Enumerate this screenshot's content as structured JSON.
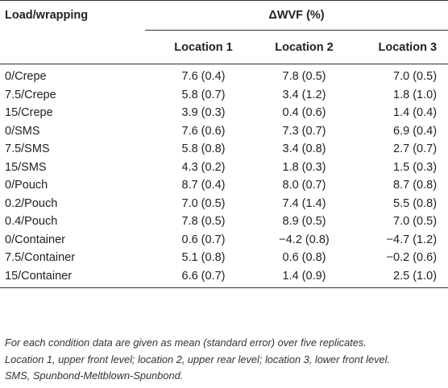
{
  "table": {
    "header": {
      "row_label": "Load/wrapping",
      "group_label": "ΔWVF (%)",
      "columns": [
        "Location 1",
        "Location 2",
        "Location 3"
      ]
    },
    "rows": [
      {
        "label": "0/Crepe",
        "values": [
          "7.6 (0.4)",
          "7.8 (0.5)",
          "7.0 (0.5)"
        ]
      },
      {
        "label": "7.5/Crepe",
        "values": [
          "5.8 (0.7)",
          "3.4 (1.2)",
          "1.8 (1.0)"
        ]
      },
      {
        "label": "15/Crepe",
        "values": [
          "3.9 (0.3)",
          "0.4 (0.6)",
          "1.4 (0.4)"
        ]
      },
      {
        "label": "0/SMS",
        "values": [
          "7.6 (0.6)",
          "7.3 (0.7)",
          "6.9 (0.4)"
        ]
      },
      {
        "label": "7.5/SMS",
        "values": [
          "5.8 (0.8)",
          "3.4 (0.8)",
          "2.7 (0.7)"
        ]
      },
      {
        "label": "15/SMS",
        "values": [
          "4.3 (0.2)",
          "1.8 (0.3)",
          "1.5 (0.3)"
        ]
      },
      {
        "label": "0/Pouch",
        "values": [
          "8.7 (0.4)",
          "8.0 (0.7)",
          "8.7 (0.8)"
        ]
      },
      {
        "label": "0.2/Pouch",
        "values": [
          "7.0 (0.5)",
          "7.4 (1.4)",
          "5.5 (0.8)"
        ]
      },
      {
        "label": "0.4/Pouch",
        "values": [
          "7.8 (0.5)",
          "8.9 (0.5)",
          "7.0 (0.5)"
        ]
      },
      {
        "label": "0/Container",
        "values": [
          "0.6 (0.7)",
          "−4.2 (0.8)",
          "−4.7 (1.2)"
        ]
      },
      {
        "label": "7.5/Container",
        "values": [
          "5.1 (0.8)",
          "0.6 (0.8)",
          "−0.2 (0.6)"
        ]
      },
      {
        "label": "15/Container",
        "values": [
          "6.6 (0.7)",
          "1.4 (0.9)",
          "2.5 (1.0)"
        ]
      }
    ]
  },
  "footnote": {
    "lines": [
      "For each condition data are given as mean (standard error) over five replicates.",
      "Location 1, upper front level; location 2, upper rear level; location 3, lower front level.",
      "SMS, Spunbond-Meltblown-Spunbond."
    ]
  }
}
